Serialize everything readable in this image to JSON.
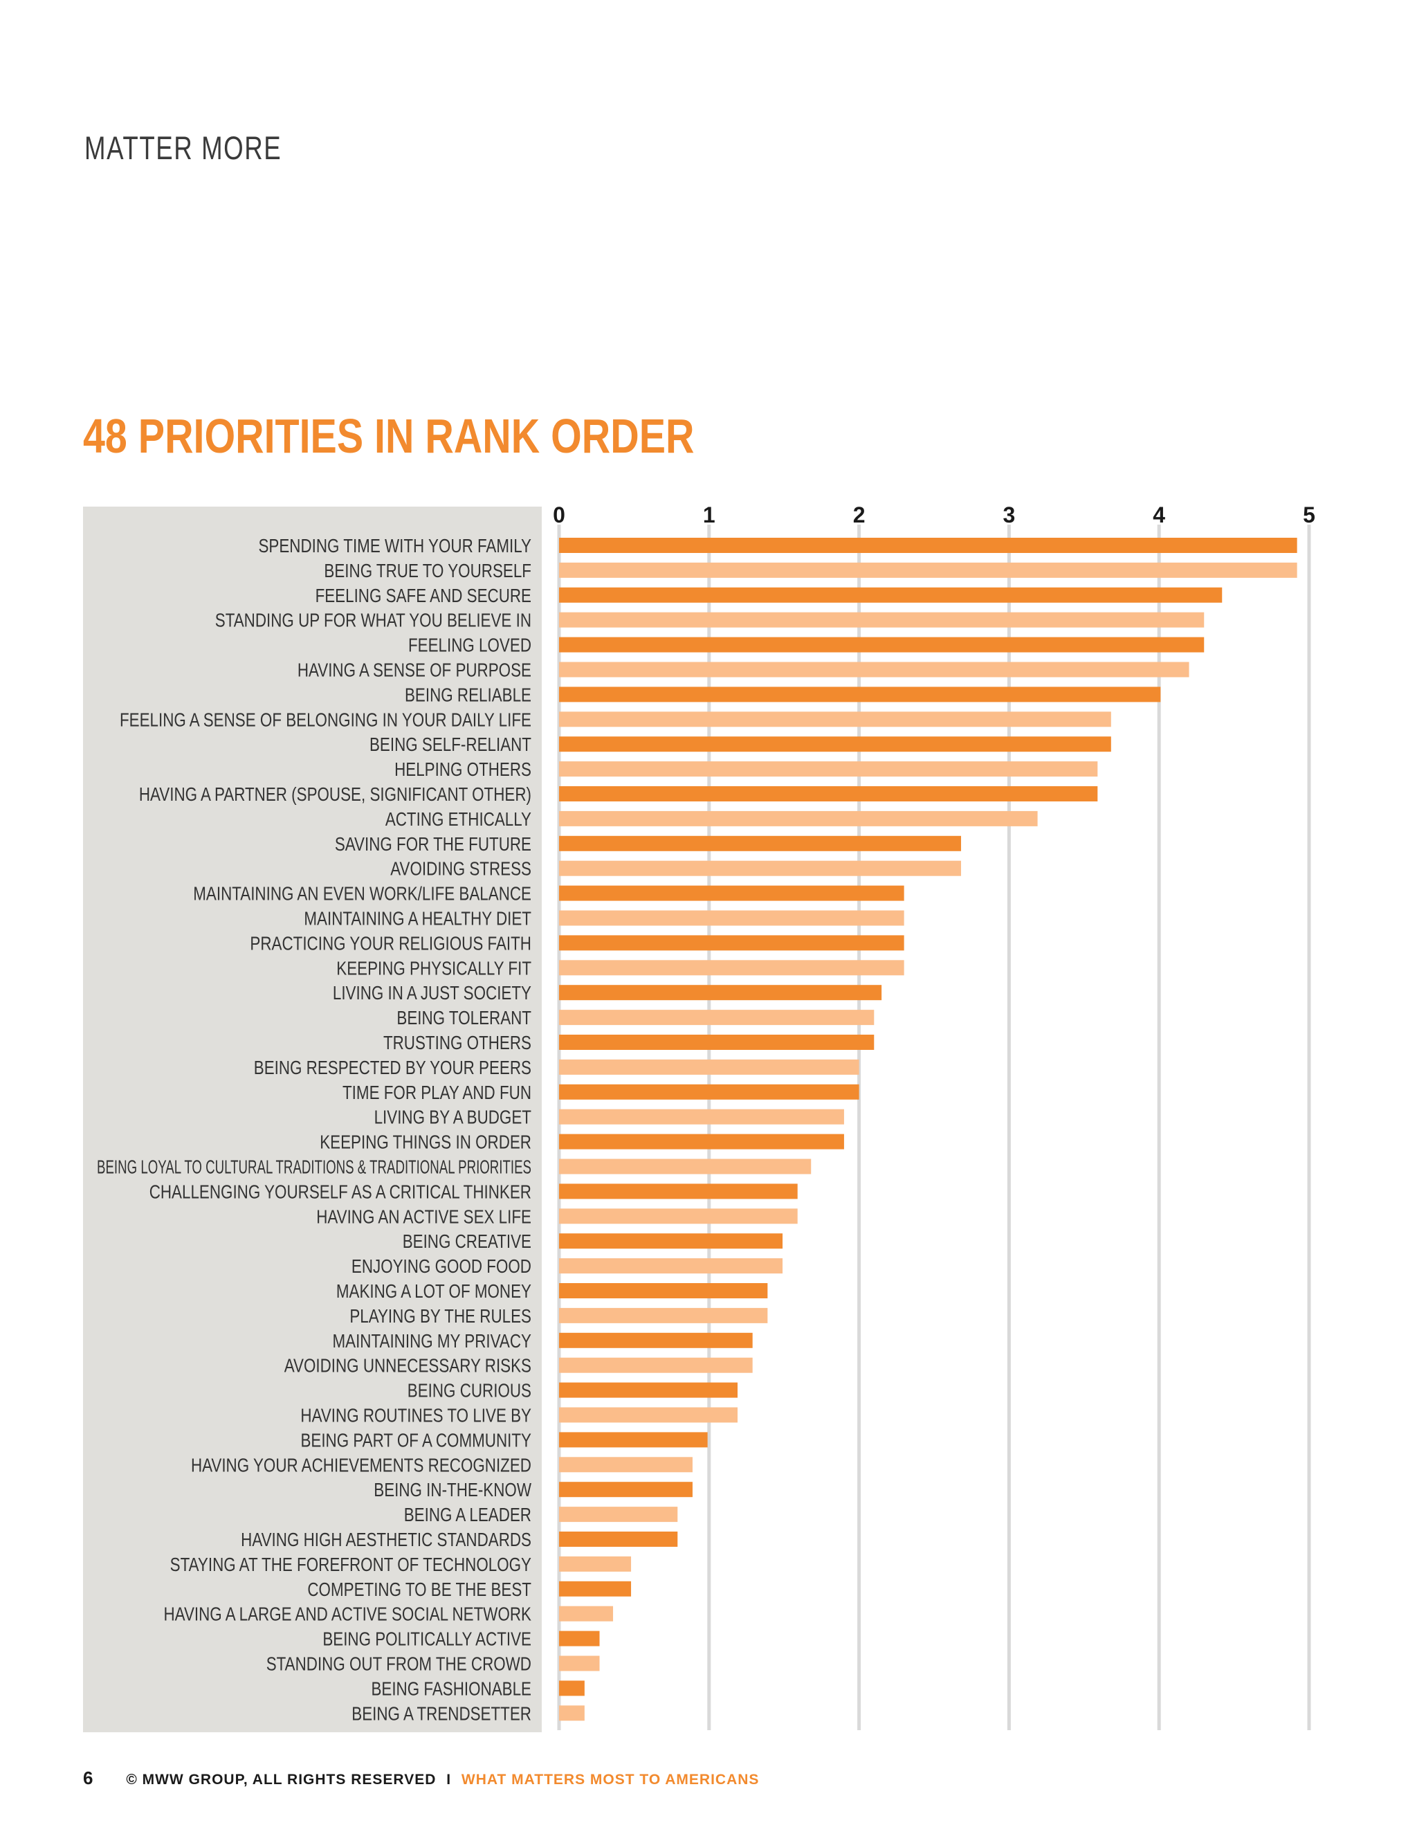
{
  "header": {
    "section_label": "MATTER MORE"
  },
  "chart_data": {
    "type": "bar",
    "orientation": "horizontal",
    "title": "48 PRIORITIES IN RANK ORDER",
    "xlabel": "",
    "ylabel": "",
    "xlim": [
      0,
      5
    ],
    "xticks": [
      "0",
      "1",
      "2",
      "3",
      "4",
      "5"
    ],
    "grid": true,
    "colors": {
      "dark": "#f28a2e",
      "light": "#fbbd8a",
      "label_panel": "#e0dfdb",
      "gridline": "#d9d9d9"
    },
    "categories": [
      "SPENDING TIME WITH YOUR FAMILY",
      "BEING TRUE TO YOURSELF",
      "FEELING SAFE AND SECURE",
      "STANDING UP FOR WHAT YOU BELIEVE IN",
      "FEELING LOVED",
      "HAVING A SENSE OF PURPOSE",
      "BEING RELIABLE",
      "FEELING A SENSE OF BELONGING IN YOUR DAILY LIFE",
      "BEING SELF-RELIANT",
      "HELPING OTHERS",
      "HAVING A PARTNER (SPOUSE, SIGNIFICANT OTHER)",
      "ACTING ETHICALLY",
      "SAVING FOR THE FUTURE",
      "AVOIDING STRESS",
      "MAINTAINING AN EVEN WORK/LIFE BALANCE",
      "MAINTAINING A HEALTHY DIET",
      "PRACTICING YOUR RELIGIOUS FAITH",
      "KEEPING PHYSICALLY FIT",
      "LIVING IN A JUST SOCIETY",
      "BEING TOLERANT",
      "TRUSTING OTHERS",
      "BEING RESPECTED BY YOUR PEERS",
      "TIME FOR PLAY AND FUN",
      "LIVING BY A BUDGET",
      "KEEPING THINGS IN ORDER",
      "BEING LOYAL TO CULTURAL TRADITIONS & TRADITIONAL PRIORITIES",
      "CHALLENGING YOURSELF AS A CRITICAL THINKER",
      "HAVING AN ACTIVE SEX LIFE",
      "BEING CREATIVE",
      "ENJOYING GOOD FOOD",
      "MAKING A LOT OF MONEY",
      "PLAYING BY THE RULES",
      "MAINTAINING MY PRIVACY",
      "AVOIDING UNNECESSARY RISKS",
      "BEING CURIOUS",
      "HAVING ROUTINES TO LIVE BY",
      "BEING PART OF A COMMUNITY",
      "HAVING YOUR ACHIEVEMENTS RECOGNIZED",
      "BEING IN-THE-KNOW",
      "BEING A LEADER",
      "HAVING HIGH AESTHETIC STANDARDS",
      "STAYING AT THE FOREFRONT OF TECHNOLOGY",
      "COMPETING TO BE THE BEST",
      "HAVING A LARGE AND ACTIVE SOCIAL NETWORK",
      "BEING POLITICALLY ACTIVE",
      "STANDING OUT FROM THE CROWD",
      "BEING FASHIONABLE",
      "BEING A TRENDSETTER"
    ],
    "values": [
      4.92,
      4.92,
      4.42,
      4.3,
      4.3,
      4.2,
      4.01,
      3.68,
      3.68,
      3.59,
      3.59,
      3.19,
      2.68,
      2.68,
      2.3,
      2.3,
      2.3,
      2.3,
      2.15,
      2.1,
      2.1,
      2.0,
      2.0,
      1.9,
      1.9,
      1.68,
      1.59,
      1.59,
      1.49,
      1.49,
      1.39,
      1.39,
      1.29,
      1.29,
      1.19,
      1.19,
      0.99,
      0.89,
      0.89,
      0.79,
      0.79,
      0.48,
      0.48,
      0.36,
      0.27,
      0.27,
      0.17,
      0.17
    ]
  },
  "footer": {
    "page_number": "6",
    "copyright": "© MWW GROUP, ALL RIGHTS RESERVED",
    "separator": "I",
    "publication": "WHAT MATTERS MOST TO AMERICANS"
  }
}
